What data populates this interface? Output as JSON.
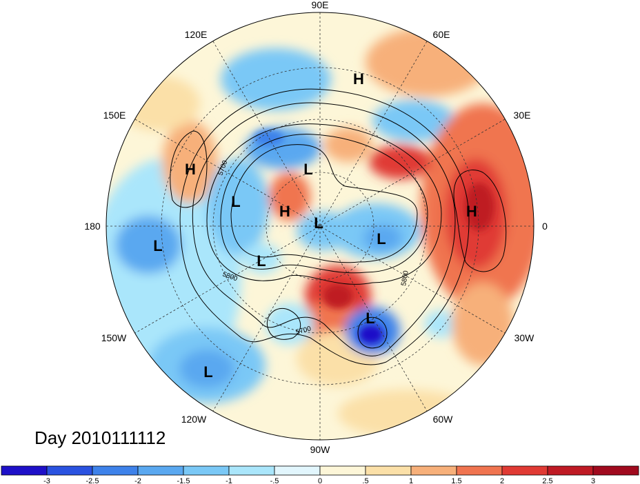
{
  "title": "Day 2010111112",
  "longitude_labels": [
    "90E",
    "60E",
    "30E",
    "0",
    "30W",
    "60W",
    "90W",
    "120W",
    "150W",
    "180",
    "150E",
    "120E"
  ],
  "contour_labels": [
    "5700",
    "5800",
    "5700",
    "5800"
  ],
  "pressure_centers": [
    {
      "type": "H",
      "label": "H"
    },
    {
      "type": "H",
      "label": "H"
    },
    {
      "type": "H",
      "label": "H"
    },
    {
      "type": "H",
      "label": "H"
    },
    {
      "type": "L",
      "label": "L"
    },
    {
      "type": "L",
      "label": "L"
    },
    {
      "type": "L",
      "label": "L"
    },
    {
      "type": "L",
      "label": "L"
    },
    {
      "type": "L",
      "label": "L"
    },
    {
      "type": "L",
      "label": "L"
    },
    {
      "type": "L",
      "label": "L"
    },
    {
      "type": "L",
      "label": "L"
    }
  ],
  "colorbar": {
    "ticks": [
      "-3",
      "-2.5",
      "-2",
      "-1.5",
      "-1",
      "-.5",
      "0",
      ".5",
      "1",
      "1.5",
      "2",
      "2.5",
      "3"
    ],
    "colors": [
      "#1e10c8",
      "#2a52e0",
      "#3e82ea",
      "#5aa8f0",
      "#7ac8f6",
      "#aae6fb",
      "#e2f6fd",
      "#fdf6d8",
      "#fbe0a8",
      "#f7b07a",
      "#f07450",
      "#e03a34",
      "#bf1a24",
      "#a00a1e"
    ]
  },
  "colors": {
    "ocean_neutral": "#f6f2dc",
    "cold_core": "#3e82ea",
    "warm_core": "#e03a34"
  }
}
